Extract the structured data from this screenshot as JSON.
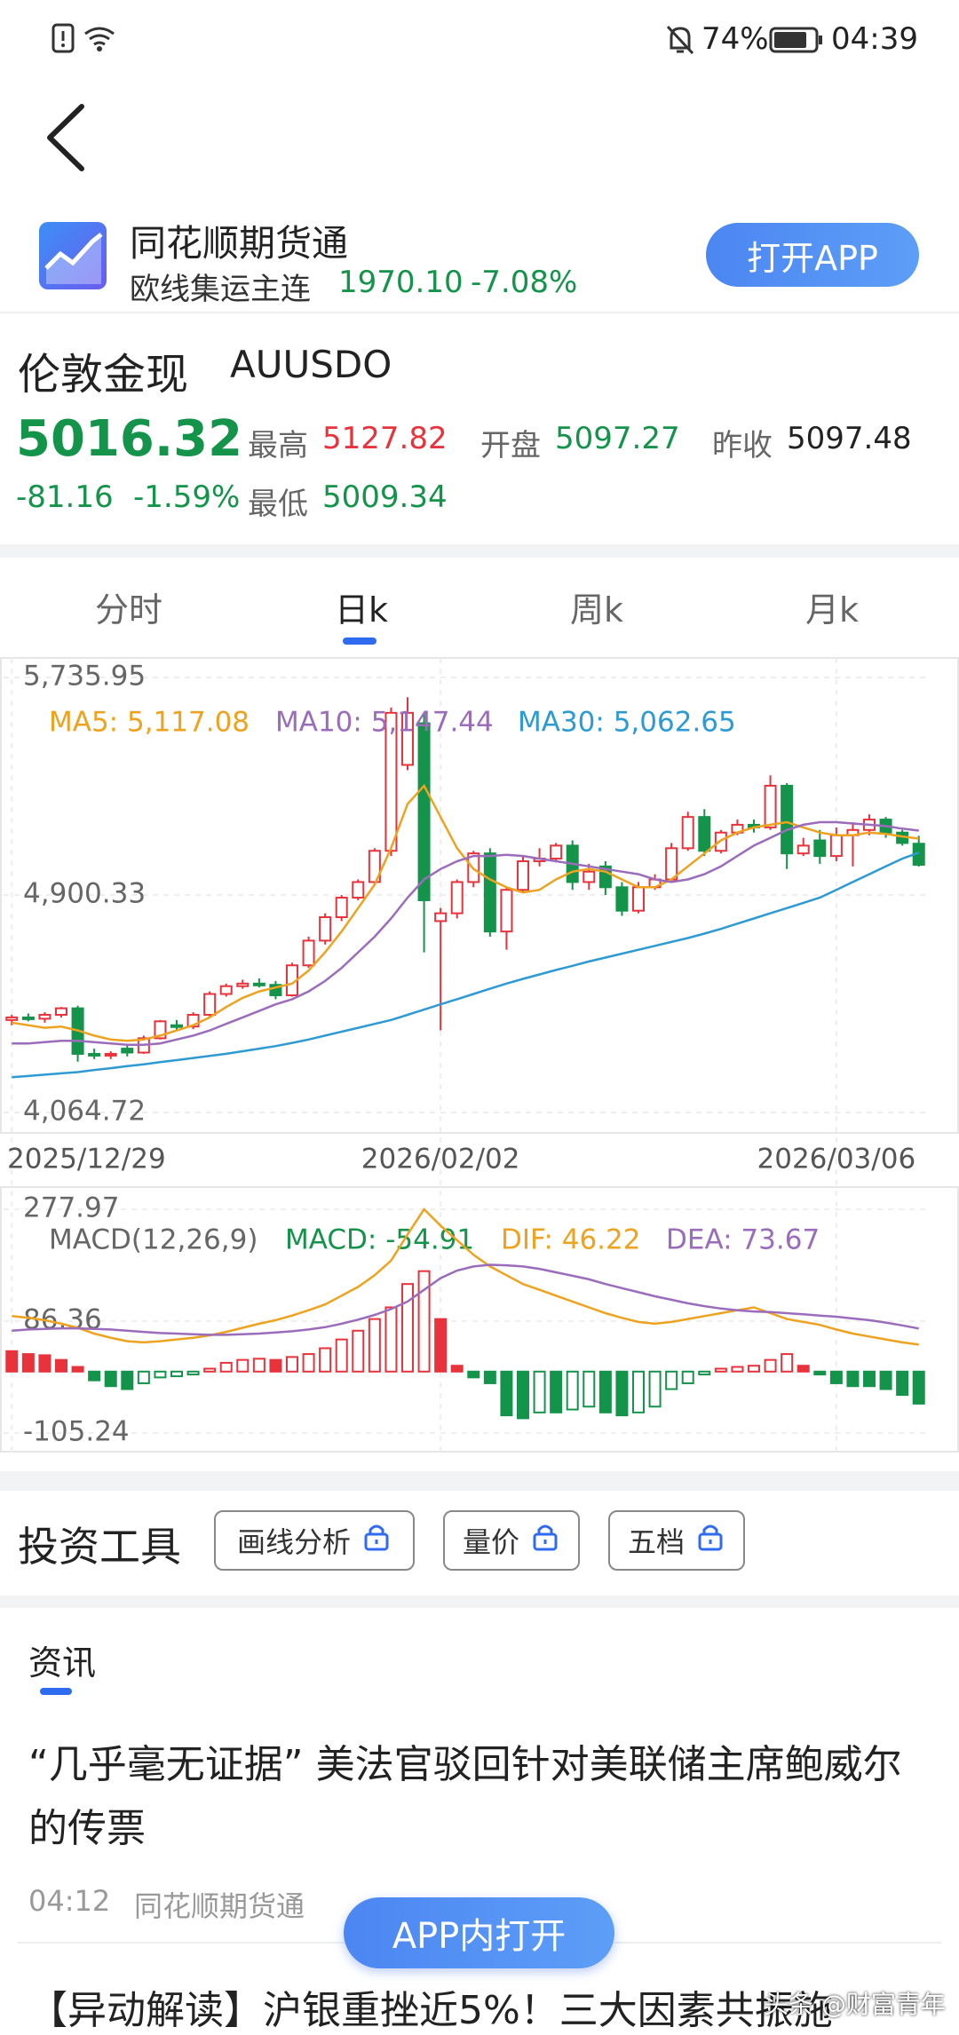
{
  "status_bar": {
    "battery": "74%",
    "time": "04:39"
  },
  "app_banner": {
    "app_name": "同花顺期货通",
    "contract": "欧线集运主连",
    "price": "1970.10",
    "change": "-7.08%",
    "button": "打开APP"
  },
  "quote": {
    "name": "伦敦金现",
    "code": "AUUSDO",
    "last": "5016.32",
    "change": "-81.16",
    "change_pct": "-1.59%",
    "high_label": "最高",
    "high": "5127.82",
    "open_label": "开盘",
    "open": "5097.27",
    "prev_close_label": "昨收",
    "prev_close": "5097.48",
    "low_label": "最低",
    "low": "5009.34"
  },
  "tabs": [
    "分时",
    "日k",
    "周k",
    "月k"
  ],
  "chart_data": [
    {
      "type": "candlestick",
      "categories": [
        "2025/12/29",
        null,
        null,
        null,
        null,
        null,
        null,
        null,
        null,
        null,
        null,
        null,
        null,
        null,
        null,
        null,
        null,
        null,
        null,
        null,
        null,
        null,
        null,
        null,
        null,
        null,
        "2026/02/02",
        null,
        null,
        null,
        null,
        null,
        null,
        null,
        null,
        null,
        null,
        null,
        null,
        null,
        null,
        null,
        null,
        null,
        null,
        null,
        null,
        null,
        null,
        null,
        "2026/03/06",
        null,
        null,
        null,
        null,
        null
      ],
      "open": [
        4420,
        4430,
        4425,
        4440,
        4465,
        4290,
        4285,
        4310,
        4295,
        4350,
        4400,
        4395,
        4440,
        4520,
        4550,
        4560,
        4555,
        4515,
        4630,
        4725,
        4815,
        4890,
        4950,
        5070,
        5400,
        5560,
        4800,
        4830,
        4950,
        5060,
        4760,
        4920,
        5030,
        5040,
        5090,
        4950,
        5010,
        4930,
        4840,
        4930,
        4960,
        5080,
        5200,
        5070,
        5140,
        5170,
        5160,
        5320,
        5060,
        5110,
        5050,
        5130,
        5150,
        5190,
        5140,
        5097.27
      ],
      "high": [
        4440,
        4445,
        4450,
        4470,
        4475,
        4310,
        4300,
        4325,
        4360,
        4420,
        4420,
        4450,
        4530,
        4560,
        4575,
        4580,
        4570,
        4640,
        4740,
        4830,
        4900,
        4960,
        5080,
        5620,
        5660,
        5600,
        4850,
        4960,
        5070,
        5080,
        4930,
        5050,
        5080,
        5100,
        5110,
        5020,
        5030,
        4950,
        4950,
        4980,
        5100,
        5220,
        5230,
        5150,
        5190,
        5190,
        5360,
        5330,
        5120,
        5150,
        5160,
        5180,
        5210,
        5200,
        5150,
        5127.82
      ],
      "low": [
        4400,
        4415,
        4410,
        4430,
        4260,
        4270,
        4270,
        4280,
        4290,
        4345,
        4380,
        4385,
        4430,
        4510,
        4540,
        4545,
        4500,
        4510,
        4620,
        4710,
        4800,
        4880,
        4940,
        5050,
        5380,
        4680,
        4380,
        4810,
        4930,
        4740,
        4690,
        4910,
        5010,
        5030,
        4920,
        4920,
        4900,
        4820,
        4830,
        4920,
        4950,
        5070,
        5050,
        5060,
        5130,
        5140,
        5150,
        5000,
        5050,
        5020,
        5030,
        5010,
        5130,
        5120,
        5090,
        5009.34
      ],
      "close": [
        4430,
        4425,
        4440,
        4465,
        4290,
        4285,
        4290,
        4295,
        4350,
        4415,
        4395,
        4440,
        4520,
        4550,
        4560,
        4555,
        4515,
        4630,
        4725,
        4815,
        4890,
        4950,
        5070,
        5600,
        5600,
        4880,
        4830,
        4950,
        5060,
        4760,
        4920,
        5030,
        5040,
        5090,
        4950,
        4990,
        4930,
        4840,
        4930,
        4960,
        5080,
        5200,
        5070,
        5140,
        5170,
        5160,
        5320,
        5060,
        5090,
        5050,
        5130,
        5150,
        5190,
        5140,
        5100,
        5016.32
      ],
      "up_color": "#e8333c",
      "down_color": "#14944a",
      "ylim": [
        4064.72,
        5735.95
      ],
      "yticks": [
        {
          "value": 5735.95,
          "label": "5,735.95"
        },
        {
          "value": 4900.33,
          "label": "4,900.33"
        },
        {
          "value": 4064.72,
          "label": "4,064.72"
        }
      ],
      "grid": true,
      "series": [
        {
          "name": "MA5: 5,117.08",
          "color": "#eea21e",
          "values": [
            4410,
            4400,
            4390,
            4395,
            4380,
            4360,
            4345,
            4340,
            4345,
            4360,
            4380,
            4400,
            4430,
            4470,
            4505,
            4530,
            4545,
            4560,
            4610,
            4680,
            4760,
            4850,
            4940,
            5080,
            5250,
            5320,
            5200,
            5080,
            5000,
            4960,
            4930,
            4910,
            4920,
            4960,
            4990,
            5000,
            4990,
            4960,
            4930,
            4930,
            4960,
            5010,
            5060,
            5110,
            5140,
            5160,
            5170,
            5180,
            5160,
            5140,
            5130,
            5130,
            5140,
            5135,
            5125,
            5117.08
          ]
        },
        {
          "name": "MA10: 5,147.44",
          "color": "#9b6cbb",
          "values": [
            4330,
            4330,
            4335,
            4340,
            4340,
            4335,
            4330,
            4325,
            4325,
            4330,
            4345,
            4360,
            4380,
            4405,
            4430,
            4455,
            4480,
            4500,
            4530,
            4570,
            4620,
            4680,
            4740,
            4810,
            4890,
            4960,
            5000,
            5030,
            5050,
            5050,
            5055,
            5050,
            5040,
            5030,
            5020,
            5010,
            5000,
            4990,
            4980,
            4960,
            4950,
            4960,
            4980,
            5010,
            5050,
            5090,
            5120,
            5150,
            5170,
            5180,
            5180,
            5175,
            5170,
            5165,
            5155,
            5147.44
          ]
        },
        {
          "name": "MA30: 5,062.65",
          "color": "#2e9ad4",
          "values": [
            4200,
            4205,
            4210,
            4215,
            4220,
            4228,
            4235,
            4243,
            4250,
            4258,
            4266,
            4274,
            4282,
            4290,
            4300,
            4310,
            4320,
            4332,
            4345,
            4360,
            4375,
            4390,
            4405,
            4420,
            4440,
            4460,
            4480,
            4500,
            4520,
            4540,
            4560,
            4578,
            4595,
            4612,
            4628,
            4645,
            4660,
            4675,
            4690,
            4705,
            4720,
            4735,
            4752,
            4770,
            4790,
            4810,
            4830,
            4850,
            4870,
            4890,
            4920,
            4950,
            4980,
            5010,
            5040,
            5062.65
          ]
        }
      ]
    },
    {
      "type": "macd",
      "title": "MACD(12,26,9)",
      "up_color": "#e8333c",
      "down_color": "#14944a",
      "ylim": [
        -105.24,
        277.97
      ],
      "yticks": [
        277.97,
        86.36,
        -105.24
      ],
      "series": [
        {
          "name": "MACD: -54.91",
          "kind": "bar",
          "color": "#14944a",
          "values": [
            35,
            30,
            28,
            20,
            8,
            -15,
            -25,
            -30,
            -20,
            -10,
            -8,
            -5,
            5,
            15,
            20,
            22,
            20,
            25,
            30,
            40,
            55,
            70,
            90,
            110,
            150,
            172,
            90,
            10,
            -10,
            -20,
            -75,
            -80,
            -70,
            -70,
            -65,
            -60,
            -70,
            -75,
            -70,
            -60,
            -30,
            -20,
            -5,
            5,
            8,
            10,
            20,
            30,
            10,
            -5,
            -20,
            -25,
            -25,
            -30,
            -40,
            -54.91
          ]
        },
        {
          "name": "DIF: 46.22",
          "kind": "line",
          "color": "#eea21e",
          "values": [
            95,
            92,
            88,
            82,
            75,
            65,
            58,
            52,
            50,
            52,
            55,
            58,
            62,
            68,
            75,
            82,
            88,
            96,
            105,
            115,
            130,
            145,
            165,
            190,
            235,
            277.97,
            250,
            225,
            200,
            180,
            165,
            150,
            140,
            130,
            120,
            110,
            100,
            92,
            85,
            82,
            85,
            90,
            95,
            100,
            105,
            110,
            100,
            90,
            85,
            80,
            72,
            65,
            60,
            55,
            50,
            46.22
          ]
        },
        {
          "name": "DEA: 73.67",
          "kind": "line",
          "color": "#9b6cbb",
          "values": [
            70,
            72,
            73,
            74,
            74,
            73,
            72,
            70,
            68,
            66,
            65,
            64,
            63,
            63,
            64,
            65,
            67,
            69,
            72,
            76,
            82,
            89,
            97,
            107,
            120,
            140,
            160,
            173,
            180,
            183,
            182,
            180,
            176,
            170,
            164,
            158,
            150,
            143,
            136,
            129,
            123,
            117,
            112,
            108,
            105,
            103,
            102,
            100,
            98,
            96,
            94,
            91,
            88,
            84,
            79,
            73.67
          ]
        }
      ]
    }
  ],
  "tools": {
    "title": "投资工具",
    "buttons": [
      "画线分析",
      "量价",
      "五档"
    ]
  },
  "news": {
    "tab": "资讯",
    "items": [
      {
        "title": "“几乎毫无证据” 美法官驳回针对美联储主席鲍威尔的传票",
        "time": "04:12",
        "source": "同花顺期货通"
      },
      {
        "title": "【异动解读】沪银重挫近5%！三大因素共振施"
      }
    ],
    "open_in_app": "APP内打开"
  },
  "watermark": "头条 @财富青年"
}
